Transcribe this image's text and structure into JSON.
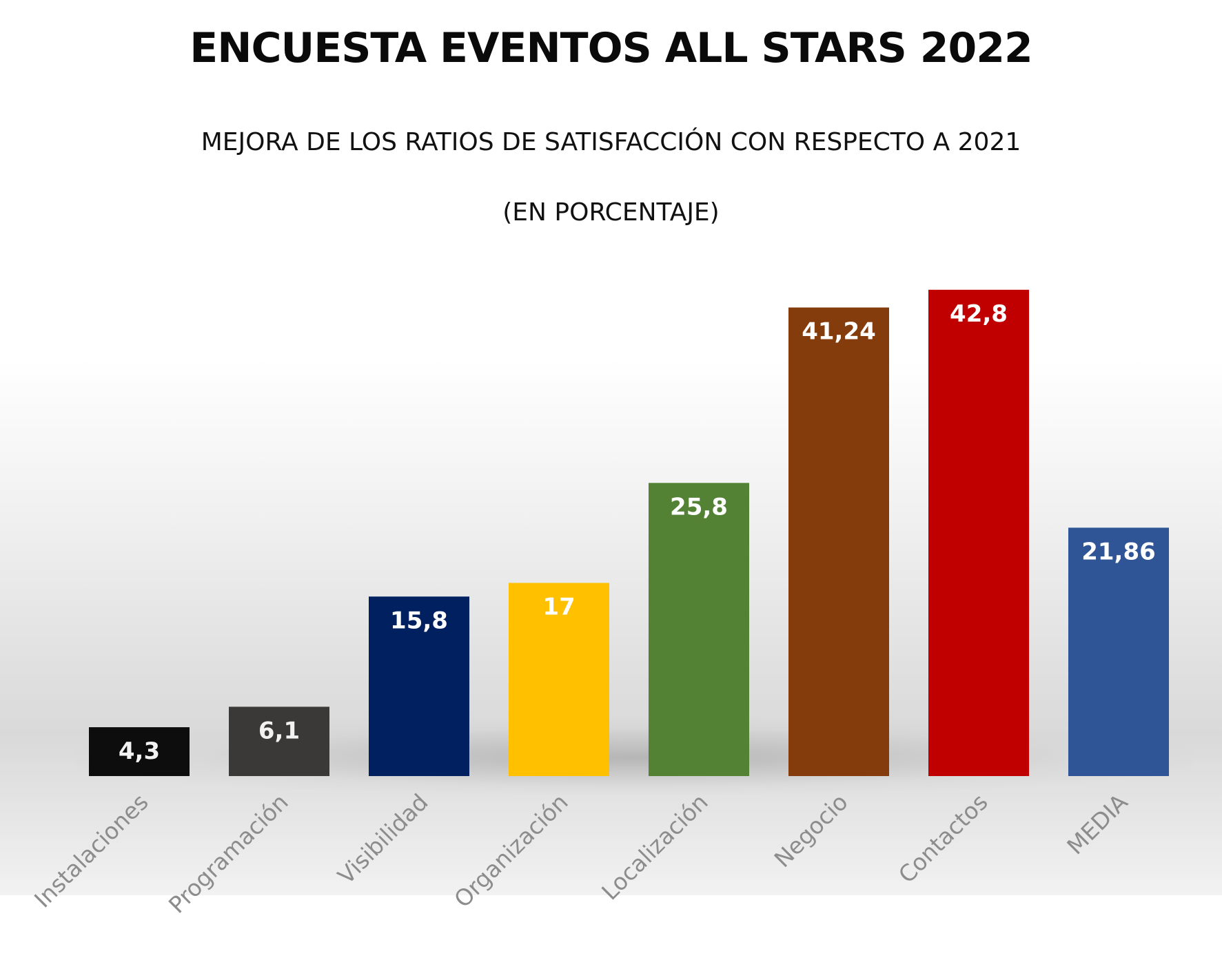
{
  "title": "ENCUESTA EVENTOS ALL STARS 2022",
  "subtitle_line1": "MEJORA DE LOS RATIOS DE SATISFACCIÓN CON RESPECTO A 2021",
  "subtitle_line2": "(EN PORCENTAJE)",
  "chart_data": {
    "type": "bar",
    "categories": [
      "Instalaciones",
      "Programación",
      "Visibilidad",
      "Organización",
      "Localización",
      "Negocio",
      "Contactos",
      "MEDIA"
    ],
    "values": [
      4.3,
      6.1,
      15.8,
      17,
      25.8,
      41.24,
      42.8,
      21.86
    ],
    "value_labels": [
      "4,3",
      "6,1",
      "15,8",
      "17",
      "25,8",
      "41,24",
      "42,8",
      "21,86"
    ],
    "colors": [
      "#0d0d0d",
      "#3b3838",
      "#002060",
      "#ffc000",
      "#548235",
      "#843c0c",
      "#c00000",
      "#2f5597"
    ],
    "title": "ENCUESTA EVENTOS ALL STARS 2022",
    "xlabel": "",
    "ylabel": "",
    "ylim": [
      0,
      45
    ],
    "grid": false,
    "legend": "none"
  }
}
